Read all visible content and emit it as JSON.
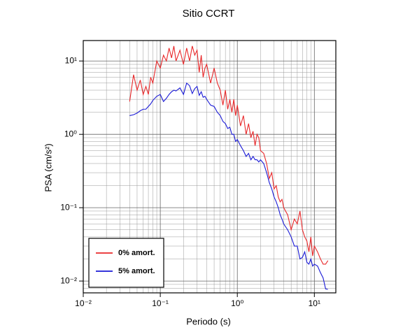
{
  "chart_data": {
    "type": "line",
    "title": "Sitio CCRT",
    "xlabel": "Periodo (s)",
    "ylabel": "PSA (cm/s²)",
    "xscale": "log",
    "yscale": "log",
    "grid": true,
    "legend_position": "lower left",
    "xlim": [
      0.01,
      19
    ],
    "ylim": [
      0.0069,
      19
    ],
    "xticks": [
      {
        "value": 0.01,
        "label": "10⁻²"
      },
      {
        "value": 0.1,
        "label": "10⁻¹"
      },
      {
        "value": 1,
        "label": "10⁰"
      },
      {
        "value": 10,
        "label": "10¹"
      }
    ],
    "yticks": [
      {
        "value": 0.01,
        "label": "10⁻²"
      },
      {
        "value": 0.1,
        "label": "10⁻¹"
      },
      {
        "value": 1,
        "label": "10⁰"
      },
      {
        "value": 10,
        "label": "10¹"
      }
    ],
    "xminorticks": [
      0.02,
      0.03,
      0.04,
      0.05,
      0.06,
      0.07,
      0.08,
      0.09,
      0.2,
      0.3,
      0.4,
      0.5,
      0.6,
      0.7,
      0.8,
      0.9,
      2,
      3,
      4,
      5,
      6,
      7,
      8,
      9
    ],
    "yminorticks": [
      0.008,
      0.009,
      0.02,
      0.03,
      0.04,
      0.05,
      0.06,
      0.07,
      0.08,
      0.09,
      0.2,
      0.3,
      0.4,
      0.5,
      0.6,
      0.7,
      0.8,
      0.9,
      2,
      3,
      4,
      5,
      6,
      7,
      8,
      9
    ],
    "x": [
      0.04,
      0.045,
      0.05,
      0.055,
      0.06,
      0.065,
      0.07,
      0.075,
      0.08,
      0.09,
      0.1,
      0.11,
      0.12,
      0.13,
      0.14,
      0.15,
      0.16,
      0.18,
      0.2,
      0.22,
      0.24,
      0.26,
      0.28,
      0.3,
      0.32,
      0.34,
      0.36,
      0.38,
      0.4,
      0.45,
      0.5,
      0.55,
      0.6,
      0.65,
      0.7,
      0.75,
      0.8,
      0.85,
      0.9,
      0.95,
      1,
      1.1,
      1.2,
      1.3,
      1.4,
      1.5,
      1.6,
      1.7,
      1.8,
      1.9,
      2,
      2.2,
      2.4,
      2.6,
      2.8,
      3,
      3.2,
      3.4,
      3.6,
      3.8,
      4,
      4.5,
      5,
      5.5,
      6,
      6.5,
      7,
      7.5,
      8,
      8.5,
      9,
      9.5,
      10,
      11,
      12,
      13,
      14,
      15
    ],
    "series": [
      {
        "name": "0% amort.",
        "color": "#e8282a",
        "values": [
          2.8,
          6.5,
          4,
          5.5,
          3.5,
          4.5,
          3.5,
          6,
          5,
          10,
          8,
          12,
          10,
          15,
          11,
          16,
          10,
          14,
          9,
          15,
          10,
          16,
          12,
          14,
          7,
          12,
          6,
          8,
          9,
          5,
          8,
          5,
          4,
          2.5,
          4,
          2.2,
          3,
          2,
          3,
          1.8,
          2.5,
          1.3,
          1.8,
          1.0,
          1.4,
          0.9,
          1.1,
          0.7,
          1.0,
          0.9,
          0.6,
          0.55,
          0.4,
          0.25,
          0.3,
          0.18,
          0.2,
          0.14,
          0.12,
          0.13,
          0.1,
          0.08,
          0.05,
          0.07,
          0.06,
          0.09,
          0.05,
          0.04,
          0.035,
          0.025,
          0.04,
          0.022,
          0.03,
          0.025,
          0.02,
          0.017,
          0.017,
          0.019
        ]
      },
      {
        "name": "5% amort.",
        "color": "#1a1ad6",
        "values": [
          1.8,
          1.85,
          1.95,
          2.1,
          2.2,
          2.2,
          2.4,
          2.6,
          2.9,
          3.3,
          3.5,
          2.8,
          3.1,
          3.5,
          3.8,
          4.0,
          3.9,
          4.3,
          3.5,
          5.0,
          4.6,
          3.6,
          4.2,
          4.5,
          3.4,
          3.8,
          3.2,
          3.3,
          3.0,
          2.5,
          2.4,
          2.0,
          1.8,
          1.5,
          1.4,
          1.2,
          1.25,
          1.0,
          1.0,
          0.8,
          0.85,
          0.7,
          0.6,
          0.5,
          0.55,
          0.45,
          0.5,
          0.45,
          0.45,
          0.42,
          0.45,
          0.4,
          0.3,
          0.22,
          0.18,
          0.14,
          0.12,
          0.1,
          0.08,
          0.07,
          0.06,
          0.05,
          0.04,
          0.03,
          0.03,
          0.02,
          0.021,
          0.025,
          0.018,
          0.017,
          0.02,
          0.016,
          0.017,
          0.016,
          0.013,
          0.011,
          0.0078,
          0.0077
        ]
      }
    ]
  }
}
